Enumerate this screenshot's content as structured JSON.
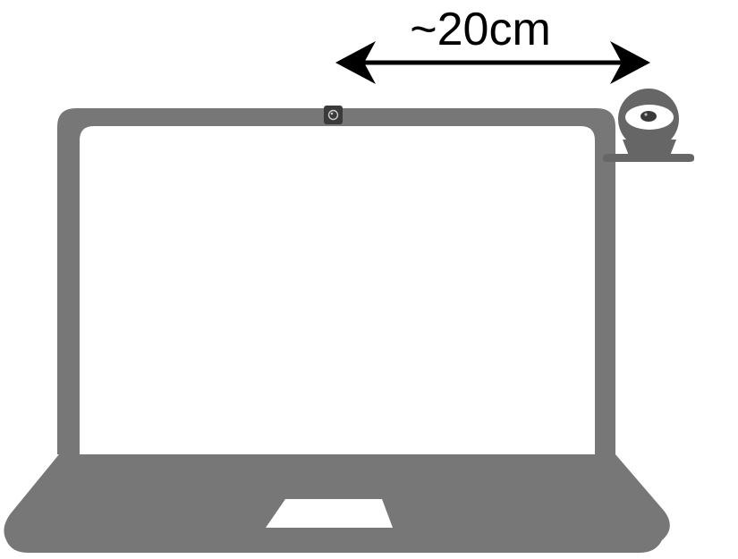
{
  "distance_label": "~20cm",
  "icons": {
    "laptop": "laptop-icon",
    "builtin_camera": "builtin-webcam-icon",
    "external_camera": "external-webcam-icon",
    "distance_arrow": "double-headed-arrow"
  },
  "colors": {
    "device_gray": "#777777",
    "camera_dark": "#3a3a3a",
    "arrow": "#000000",
    "background": "#ffffff",
    "screen": "#ffffff"
  }
}
